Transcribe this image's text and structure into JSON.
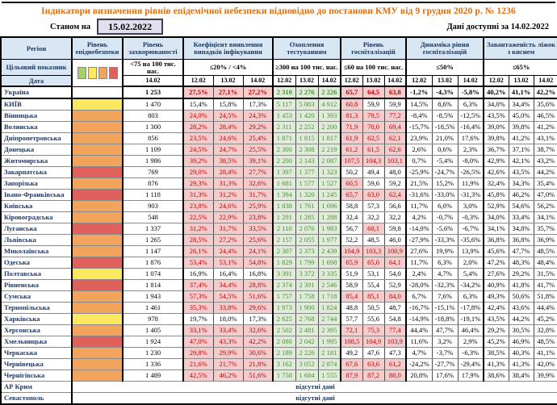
{
  "title": "Індикатори визначення рівнів епідемічної небезпеки відповідно до постанови КМУ від 9 грудня 2020 р. № 1236",
  "meta": {
    "as_of_label": "Станом на",
    "as_of_date": "15.02.2022",
    "available_text": "Дані доступні за  14.02.2022"
  },
  "colors": {
    "title_accent": "#E36C0A",
    "header_bg": "#D9E6F4",
    "bad_bg": "#F5CBCB",
    "bad_text": "#C00000",
    "good_bg": "#DFEDD8",
    "good_text": "#4E8A3C",
    "level": {
      "green": "#A8CE6E",
      "yellow": "#FBE860",
      "orange": "#F2A45C",
      "red": "#E0615C",
      "none": "#FFFFFF"
    }
  },
  "table": {
    "group_labels": [
      "Регіон",
      "Рівень епіднебезпеки",
      "Рівень захворюваності",
      "Коефіцієнт виявлення випадків інфікування",
      "Охоплення тестуванням",
      "Рівень госпіталізацій",
      "Динаміка рівня госпіталізацій",
      "Завантаженість ліжок з киснем"
    ],
    "target_row_label": "Цільовий показник",
    "date_row_label": "Дата",
    "targets": [
      "<75 на 100 тис. нас.",
      "≤20% / <4%",
      "≥300 на 100 тис. нас.",
      "≤60 на 100 тис. нас.",
      "≤50%",
      "≤65%"
    ],
    "date_cells": [
      "14.02",
      "12.02",
      "13.02",
      "14.02",
      "12.02",
      "13.02",
      "14.02",
      "12.02",
      "13.02",
      "14.02",
      "12.02",
      "13.02",
      "14.02",
      "12.02",
      "13.02",
      "14.02"
    ],
    "legend_colors": [
      "#A8CE6E",
      "#FBE860",
      "#F2A45C",
      "#E0615C"
    ],
    "no_data_text": "відсутні дані",
    "rows": [
      {
        "region": "Україна",
        "level": "none",
        "bold": true,
        "incidence": "1 253",
        "coef": [
          "27,5%",
          "27,1%",
          "27,2%"
        ],
        "test": [
          "2 310",
          "2 276",
          "2 226"
        ],
        "hosp": [
          "65,7",
          "64,5",
          "63,8"
        ],
        "dyn": [
          "-1,2%",
          "-4,3%",
          "-5,8%"
        ],
        "beds": [
          "40,2%",
          "41,1%",
          "42,2%"
        ]
      },
      {
        "region": "КИЇВ",
        "level": "yellow",
        "incidence": "1 470",
        "coef": [
          "15,4%",
          "15,8%",
          "17,3%"
        ],
        "test": [
          "5 117",
          "5 003",
          "4 912"
        ],
        "hosp": [
          "60,8",
          "59,9",
          "59,9"
        ],
        "dyn": [
          "14,5%",
          "8,6%",
          "6,3%"
        ],
        "beds": [
          "34,0%",
          "34,4%",
          "35,6%"
        ]
      },
      {
        "region": "Вінницька",
        "level": "orange",
        "incidence": "803",
        "coef": [
          "24,0%",
          "24,5%",
          "24,3%"
        ],
        "test": [
          "1 453",
          "1 420",
          "1 393"
        ],
        "hosp": [
          "81,3",
          "79,5",
          "77,2"
        ],
        "dyn": [
          "-8,4%",
          "-8,5%",
          "-12,5%"
        ],
        "beds": [
          "43,5%",
          "45,0%",
          "46,5%"
        ]
      },
      {
        "region": "Волинська",
        "level": "orange",
        "incidence": "1 300",
        "coef": [
          "28,2%",
          "28,4%",
          "29,2%"
        ],
        "test": [
          "2 311",
          "2 252",
          "2 200"
        ],
        "hosp": [
          "71,9",
          "70,0",
          "69,4"
        ],
        "dyn": [
          "-15,7%",
          "-18,5%",
          "-16,4%"
        ],
        "beds": [
          "39,0%",
          "39,8%",
          "41,2%"
        ]
      },
      {
        "region": "Дніпропетровська",
        "level": "orange",
        "incidence": "856",
        "coef": [
          "23,5%",
          "24,6%",
          "25,4%"
        ],
        "test": [
          "1 871",
          "1 815",
          "1 817"
        ],
        "hosp": [
          "61,9",
          "62,5",
          "62,1"
        ],
        "dyn": [
          "23,9%",
          "21,0%",
          "17,6%"
        ],
        "beds": [
          "39,8%",
          "41,2%",
          "43,1%"
        ]
      },
      {
        "region": "Донецька",
        "level": "orange",
        "incidence": "1 109",
        "coef": [
          "24,5%",
          "24,7%",
          "25,5%"
        ],
        "test": [
          "2 300",
          "2 308",
          "2 219"
        ],
        "hosp": [
          "61,2",
          "61,5",
          "62,6"
        ],
        "dyn": [
          "2,6%",
          "0,6%",
          "2,3%"
        ],
        "beds": [
          "36,7%",
          "37,1%",
          "38,7%"
        ]
      },
      {
        "region": "Житомирська",
        "level": "orange",
        "incidence": "1 986",
        "coef": [
          "39,2%",
          "38,5%",
          "39,1%"
        ],
        "test": [
          "2 200",
          "2 143",
          "2 087"
        ],
        "hosp": [
          "107,5",
          "104,3",
          "103,1"
        ],
        "dyn": [
          "0,7%",
          "-5,4%",
          "-8,0%"
        ],
        "beds": [
          "42,9%",
          "42,1%",
          "43,2%"
        ]
      },
      {
        "region": "Закарпатська",
        "level": "red",
        "incidence": "769",
        "coef": [
          "29,0%",
          "28,4%",
          "27,7%"
        ],
        "test": [
          "1 397",
          "1 377",
          "1 323"
        ],
        "hosp": [
          "50,2",
          "49,4",
          "48,0"
        ],
        "dyn": [
          "-25,9%",
          "-24,7%",
          "-26,5%"
        ],
        "beds": [
          "42,6%",
          "43,5%",
          "44,2%"
        ]
      },
      {
        "region": "Запорізька",
        "level": "orange",
        "incidence": "876",
        "coef": [
          "29,3%",
          "31,3%",
          "32,6%"
        ],
        "test": [
          "1 681",
          "1 577",
          "1 527"
        ],
        "hosp": [
          "60,5",
          "59,6",
          "59,2"
        ],
        "dyn": [
          "21,5%",
          "15,2%",
          "11,9%"
        ],
        "beds": [
          "32,4%",
          "34,3%",
          "35,4%"
        ]
      },
      {
        "region": "Івано-Франківська",
        "level": "red",
        "incidence": "1 118",
        "coef": [
          "31,3%",
          "31,2%",
          "31,7%"
        ],
        "test": [
          "1 394",
          "1 320",
          "1 245"
        ],
        "hosp": [
          "65,7",
          "63,0",
          "62,4"
        ],
        "dyn": [
          "-31,6%",
          "-33,0%",
          "-31,3%"
        ],
        "beds": [
          "45,8%",
          "46,2%",
          "47,0%"
        ]
      },
      {
        "region": "Київська",
        "level": "orange",
        "incidence": "903",
        "coef": [
          "23,8%",
          "24,6%",
          "25,9%"
        ],
        "test": [
          "1 838",
          "1 761",
          "1 696"
        ],
        "hosp": [
          "58,8",
          "57,3",
          "56,6"
        ],
        "dyn": [
          "11,7%",
          "6,0%",
          "3,0%"
        ],
        "beds": [
          "52,9%",
          "54,6%",
          "56,2%"
        ]
      },
      {
        "region": "Кіровоградська",
        "level": "orange",
        "incidence": "548",
        "coef": [
          "22,5%",
          "22,9%",
          "23,8%"
        ],
        "test": [
          "1 291",
          "1 285",
          "1 288"
        ],
        "hosp": [
          "32,4",
          "32,2",
          "32,2"
        ],
        "dyn": [
          "4,2%",
          "-0,7%",
          "-0,3%"
        ],
        "beds": [
          "34,0%",
          "33,4%",
          "34,1%"
        ]
      },
      {
        "region": "Луганська",
        "level": "red",
        "incidence": "1 337",
        "coef": [
          "31,2%",
          "31,7%",
          "33,5%"
        ],
        "test": [
          "2 110",
          "2 076",
          "1 983"
        ],
        "hosp": [
          "56,7",
          "60,1",
          "59,8"
        ],
        "dyn": [
          "-14,0%",
          "-5,6%",
          "-6,7%"
        ],
        "beds": [
          "34,1%",
          "34,8%",
          "35,7%"
        ]
      },
      {
        "region": "Львівська",
        "level": "orange",
        "incidence": "1 265",
        "coef": [
          "28,5%",
          "27,2%",
          "25,6%"
        ],
        "test": [
          "2 157",
          "2 055",
          "1 977"
        ],
        "hosp": [
          "52,2",
          "48,5",
          "46,0"
        ],
        "dyn": [
          "-27,9%",
          "-33,3%",
          "-35,6%"
        ],
        "beds": [
          "36,8%",
          "36,8%",
          "36,9%"
        ]
      },
      {
        "region": "Миколаївська",
        "level": "orange",
        "incidence": "1 147",
        "coef": [
          "26,1%",
          "24,4%",
          "24,1%"
        ],
        "test": [
          "2 307",
          "2 373",
          "2 439"
        ],
        "hosp": [
          "104,9",
          "103,3",
          "100,9"
        ],
        "dyn": [
          "27,6%",
          "19,9%",
          "13,9%"
        ],
        "beds": [
          "45,6%",
          "47,7%",
          "48,5%"
        ]
      },
      {
        "region": "Одеська",
        "level": "red",
        "incidence": "1 876",
        "coef": [
          "53,4%",
          "53,1%",
          "54,8%"
        ],
        "test": [
          "1 829",
          "1 799",
          "1 698"
        ],
        "hosp": [
          "65,9",
          "65,0",
          "64,1"
        ],
        "dyn": [
          "11,7%",
          "6,3%",
          "2,0%"
        ],
        "beds": [
          "47,2%",
          "48,3%",
          "48,4%"
        ]
      },
      {
        "region": "Полтавська",
        "level": "yellow",
        "incidence": "1 074",
        "coef": [
          "16,9%",
          "16,4%",
          "16,8%"
        ],
        "test": [
          "3 391",
          "3 372",
          "3 335"
        ],
        "hosp": [
          "51,9",
          "53,1",
          "54,0"
        ],
        "dyn": [
          "2,4%",
          "4,7%",
          "5,4%"
        ],
        "beds": [
          "27,6%",
          "29,2%",
          "31,5%"
        ]
      },
      {
        "region": "Рівненська",
        "level": "red",
        "incidence": "1 814",
        "coef": [
          "37,4%",
          "34,4%",
          "28,8%"
        ],
        "test": [
          "2 374",
          "2 391",
          "2 546"
        ],
        "hosp": [
          "58,9",
          "55,4",
          "52,9"
        ],
        "dyn": [
          "-28,0%",
          "-32,3%",
          "-34,2%"
        ],
        "beds": [
          "40,9%",
          "41,8%",
          "41,7%"
        ]
      },
      {
        "region": "Сумська",
        "level": "orange",
        "incidence": "1 943",
        "coef": [
          "57,3%",
          "54,5%",
          "51,6%"
        ],
        "test": [
          "1 757",
          "1 758",
          "1 718"
        ],
        "hosp": [
          "85,4",
          "85,1",
          "84,0"
        ],
        "dyn": [
          "6,7%",
          "7,6%",
          "6,3%"
        ],
        "beds": [
          "49,3%",
          "50,6%",
          "51,8%"
        ]
      },
      {
        "region": "Тернопільська",
        "level": "orange",
        "incidence": "1 461",
        "coef": [
          "35,3%",
          "33,8%",
          "29,6%"
        ],
        "test": [
          "1 973",
          "1 900",
          "1 824"
        ],
        "hosp": [
          "48,8",
          "50,5",
          "48,7"
        ],
        "dyn": [
          "-16,7%",
          "-15,1%",
          "-17,8%"
        ],
        "beds": [
          "42,4%",
          "43,6%",
          "44,4%"
        ]
      },
      {
        "region": "Харківська",
        "level": "yellow",
        "incidence": "978",
        "coef": [
          "19,7%",
          "18,0%",
          "17,3%"
        ],
        "test": [
          "2 625",
          "2 768",
          "2 744"
        ],
        "hosp": [
          "57,7",
          "55,6",
          "54,8"
        ],
        "dyn": [
          "-14,9%",
          "-18,8%",
          "-19,1%"
        ],
        "beds": [
          "43,5%",
          "44,2%",
          "45,2%"
        ]
      },
      {
        "region": "Херсонська",
        "level": "orange",
        "incidence": "1 405",
        "coef": [
          "33,1%",
          "33,4%",
          "32,6%"
        ],
        "test": [
          "2 502",
          "2 481",
          "2 395"
        ],
        "hosp": [
          "72,1",
          "75,3",
          "77,4"
        ],
        "dyn": [
          "44,4%",
          "47,7%",
          "46,4%"
        ],
        "beds": [
          "29,2%",
          "30,5%",
          "32,8%"
        ]
      },
      {
        "region": "Хмельницька",
        "level": "red",
        "incidence": "1 924",
        "coef": [
          "47,0%",
          "43,3%",
          "42,2%"
        ],
        "test": [
          "2 080",
          "2 042",
          "1 995"
        ],
        "hosp": [
          "108,5",
          "104,9",
          "103,9"
        ],
        "dyn": [
          "11,6%",
          "3,2%",
          "2,9%"
        ],
        "beds": [
          "45,2%",
          "46,9%",
          "48,5%"
        ]
      },
      {
        "region": "Черкаська",
        "level": "orange",
        "incidence": "1 230",
        "coef": [
          "29,8%",
          "29,9%",
          "30,6%"
        ],
        "test": [
          "2 189",
          "2 226",
          "2 181"
        ],
        "hosp": [
          "49,2",
          "47,6",
          "47,3"
        ],
        "dyn": [
          "4,7%",
          "-3,7%",
          "-6,3%"
        ],
        "beds": [
          "38,5%",
          "40,3%",
          "41,1%"
        ]
      },
      {
        "region": "Чернівецька",
        "level": "orange",
        "incidence": "1 336",
        "coef": [
          "21,6%",
          "21,7%",
          "21,8%"
        ],
        "test": [
          "3 162",
          "3 052",
          "2 874"
        ],
        "hosp": [
          "67,6",
          "63,6",
          "61,2"
        ],
        "dyn": [
          "-24,2%",
          "-27,7%",
          "-29,4%"
        ],
        "beds": [
          "41,3%",
          "41,3%",
          "42,0%"
        ]
      },
      {
        "region": "Чернігівська",
        "level": "orange",
        "incidence": "1 489",
        "coef": [
          "42,5%",
          "46,2%",
          "51,6%"
        ],
        "test": [
          "1 758",
          "1 684",
          "1 555"
        ],
        "hosp": [
          "87,9",
          "87,2",
          "88,0"
        ],
        "dyn": [
          "20,8%",
          "17,6%",
          "17,9%"
        ],
        "beds": [
          "38,6%",
          "38,4%",
          "39,9%"
        ]
      },
      {
        "region": "АР Крим",
        "no_data": true
      },
      {
        "region": "Севастополь",
        "no_data": true
      }
    ]
  }
}
